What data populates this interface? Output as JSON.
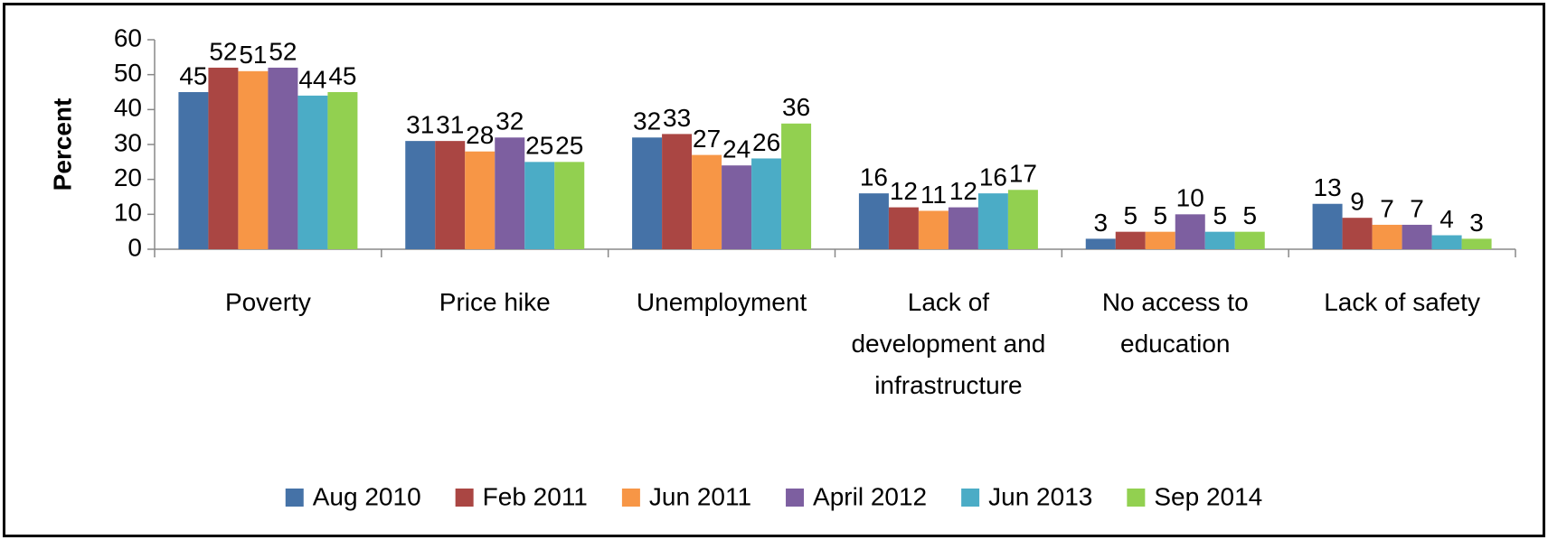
{
  "chart_data": {
    "type": "bar",
    "y_label": "Percent",
    "categories": [
      "Poverty",
      "Price hike",
      "Unemployment",
      "Lack of development and infrastructure",
      "No access to education",
      "Lack of safety"
    ],
    "series": [
      {
        "name": "Aug 2010",
        "color": "#4572a7",
        "values": [
          45,
          31,
          32,
          16,
          3,
          13
        ]
      },
      {
        "name": "Feb 2011",
        "color": "#aa4643",
        "values": [
          52,
          31,
          33,
          12,
          5,
          9
        ]
      },
      {
        "name": "Jun 2011",
        "color": "#f79646",
        "values": [
          51,
          28,
          27,
          11,
          5,
          7
        ]
      },
      {
        "name": "April 2012",
        "color": "#7d5fa0",
        "values": [
          52,
          32,
          24,
          12,
          10,
          7
        ]
      },
      {
        "name": "Jun 2013",
        "color": "#4bacc6",
        "values": [
          44,
          25,
          26,
          16,
          5,
          4
        ]
      },
      {
        "name": "Sep 2014",
        "color": "#92d050",
        "values": [
          45,
          25,
          36,
          17,
          5,
          3
        ]
      }
    ],
    "ylim": [
      0,
      60
    ],
    "yticks": [
      0,
      10,
      20,
      30,
      40,
      50,
      60
    ],
    "grid": false,
    "legend": "bottom"
  }
}
